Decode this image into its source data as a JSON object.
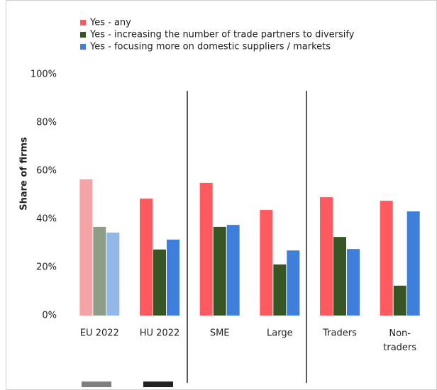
{
  "chart_data": {
    "type": "bar",
    "y_label": "Share of firms",
    "categories": [
      "EU 2022",
      "HU 2022",
      "SME",
      "Large",
      "Traders",
      "Non-traders"
    ],
    "muted_categories": [
      "EU 2022"
    ],
    "series": [
      {
        "name": "Yes - any",
        "color": "#ff5a5f",
        "muted_color": "#f6a3a6",
        "values": [
          56.5,
          48.5,
          55,
          43.8,
          49.1,
          47.6
        ]
      },
      {
        "name": "Yes - increasing the number of trade partners to diversify",
        "color": "#375623",
        "muted_color": "#8e9d86",
        "values": [
          36.8,
          27.4,
          36.8,
          21.2,
          32.6,
          12.4
        ]
      },
      {
        "name": "Yes - focusing more on domestic suppliers / markets",
        "color": "#3d7fdb",
        "muted_color": "#93b7e6",
        "values": [
          34.4,
          31.5,
          37.6,
          27,
          27.6,
          43.2
        ]
      }
    ],
    "ylim": [
      0,
      100
    ],
    "yticks": [
      {
        "value": 0,
        "label": "0%"
      },
      {
        "value": 20,
        "label": "20%"
      },
      {
        "value": 40,
        "label": "40%"
      },
      {
        "value": 60,
        "label": "60%"
      },
      {
        "value": 80,
        "label": "80%"
      },
      {
        "value": 100,
        "label": "100%"
      }
    ],
    "grid": false
  }
}
